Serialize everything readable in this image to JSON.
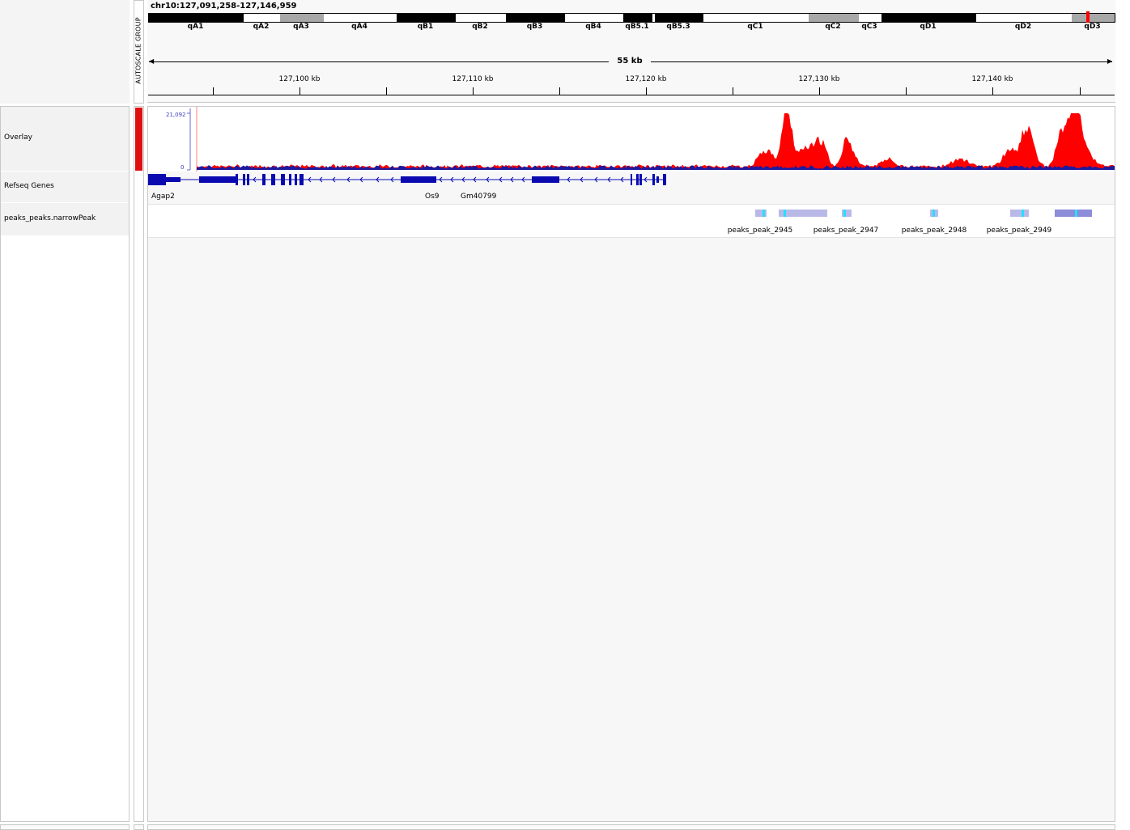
{
  "locus": "chr10:127,091,258-127,146,959",
  "attribute_header": "AUTOSCALE GROUP",
  "scale_label": "55 kb",
  "ideogram_bands": [
    {
      "name": "qA1",
      "start": 0,
      "end": 117,
      "stain": "black"
    },
    {
      "name": "qA2",
      "start": 117,
      "end": 162,
      "stain": "white"
    },
    {
      "name": "qA3",
      "start": 162,
      "end": 216,
      "stain": "gray"
    },
    {
      "name": "qA4",
      "start": 216,
      "end": 306,
      "stain": "white"
    },
    {
      "name": "qB1",
      "start": 306,
      "end": 379,
      "stain": "black"
    },
    {
      "name": "qB2",
      "start": 379,
      "end": 441,
      "stain": "white"
    },
    {
      "name": "qB3",
      "start": 441,
      "end": 514,
      "stain": "black"
    },
    {
      "name": "qB4",
      "start": 514,
      "end": 586,
      "stain": "white"
    },
    {
      "name": "qB5.1",
      "start": 586,
      "end": 622,
      "stain": "black"
    },
    {
      "name": "qB5.2",
      "start": 622,
      "end": 625,
      "stain": "white"
    },
    {
      "name": "qB5.3",
      "start": 625,
      "end": 685,
      "stain": "black"
    },
    {
      "name": "qC1",
      "start": 685,
      "end": 815,
      "stain": "white"
    },
    {
      "name": "qC2",
      "start": 815,
      "end": 877,
      "stain": "gray"
    },
    {
      "name": "qC3",
      "start": 877,
      "end": 905,
      "stain": "white"
    },
    {
      "name": "qD1",
      "start": 905,
      "end": 1022,
      "stain": "black"
    },
    {
      "name": "qD2",
      "start": 1022,
      "end": 1140,
      "stain": "white"
    },
    {
      "name": "qD3",
      "start": 1140,
      "end": 1193,
      "stain": "gray"
    }
  ],
  "ruler_ticks": [
    "127,100 kb",
    "127,110 kb",
    "127,120 kb",
    "127,130 kb",
    "127,140 kb"
  ],
  "track_names": {
    "overlay": "Overlay",
    "refseq": "Refseq Genes",
    "peaks": "peaks_peaks.narrowPeak"
  },
  "data_range": {
    "max": "21,092",
    "min": "0"
  },
  "colors": {
    "overlay_red": "#ff0000",
    "overlay_blue": "#1a1aa0",
    "gene": "#0a0ab0",
    "peak": "#b9b9e8",
    "summit": "#22e0ff"
  },
  "genes": [
    {
      "name": "Agap2"
    },
    {
      "name": "Os9"
    },
    {
      "name": "Gm40799"
    }
  ],
  "peaks": [
    {
      "label": "peaks_peak_2945"
    },
    {
      "label": "peaks_peak_2947"
    },
    {
      "label": "peaks_peak_2948"
    },
    {
      "label": "peaks_peak_2949"
    }
  ]
}
